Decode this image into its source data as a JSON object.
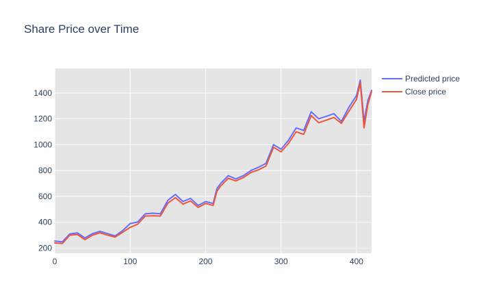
{
  "chart_data": {
    "type": "line",
    "title": "Share Price over Time",
    "xlabel": "",
    "ylabel": "",
    "xlim": [
      0,
      420
    ],
    "ylim": [
      160,
      1590
    ],
    "x_ticks": [
      0,
      100,
      200,
      300,
      400
    ],
    "y_ticks": [
      200,
      400,
      600,
      800,
      1000,
      1200,
      1400
    ],
    "grid": true,
    "legend_position": "top-right",
    "x": [
      0,
      10,
      20,
      30,
      40,
      50,
      60,
      70,
      80,
      90,
      100,
      110,
      120,
      130,
      140,
      150,
      160,
      170,
      180,
      190,
      200,
      210,
      215,
      220,
      230,
      240,
      250,
      260,
      270,
      280,
      290,
      300,
      310,
      320,
      330,
      340,
      350,
      360,
      370,
      380,
      390,
      400,
      405,
      410,
      415,
      420
    ],
    "series": [
      {
        "name": "Predicted price",
        "color": "#636efa",
        "values": [
          255,
          248,
          310,
          318,
          278,
          312,
          330,
          312,
          294,
          335,
          390,
          402,
          465,
          470,
          465,
          570,
          615,
          560,
          585,
          530,
          560,
          545,
          660,
          700,
          760,
          735,
          760,
          800,
          825,
          855,
          1000,
          965,
          1035,
          1130,
          1110,
          1255,
          1200,
          1220,
          1240,
          1180,
          1290,
          1380,
          1500,
          1180,
          1340,
          1420
        ]
      },
      {
        "name": "Close price",
        "color": "#ef553b",
        "values": [
          240,
          235,
          300,
          305,
          265,
          300,
          318,
          300,
          285,
          322,
          360,
          385,
          448,
          450,
          448,
          548,
          590,
          540,
          565,
          515,
          545,
          530,
          640,
          680,
          740,
          720,
          745,
          785,
          805,
          835,
          980,
          945,
          1010,
          1100,
          1080,
          1225,
          1170,
          1190,
          1210,
          1165,
          1260,
          1350,
          1480,
          1130,
          1310,
          1410
        ]
      }
    ]
  }
}
